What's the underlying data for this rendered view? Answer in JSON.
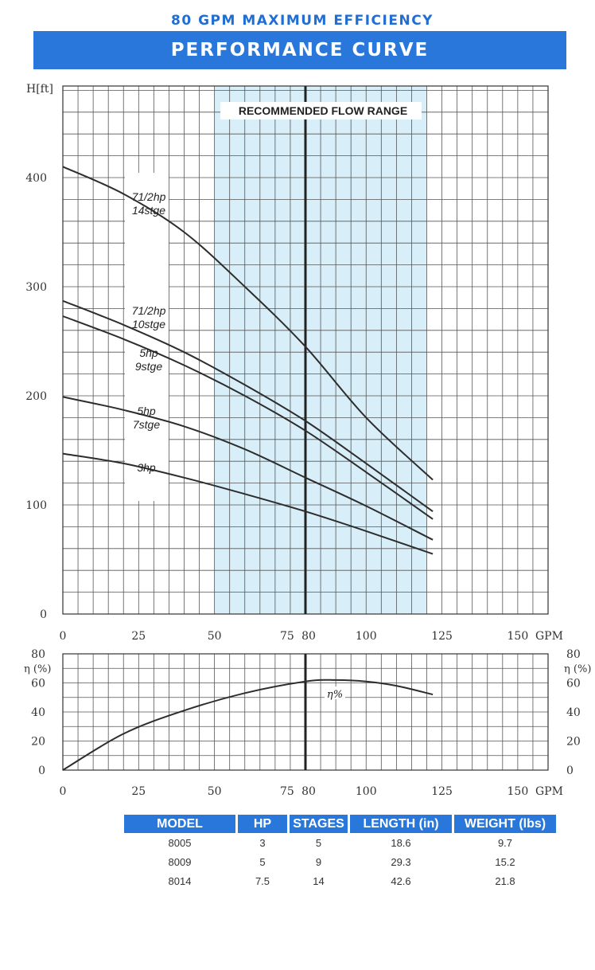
{
  "header": {
    "subtitle": "80 GPM MAXIMUM EFFICIENCY",
    "title": "PERFORMANCE CURVE"
  },
  "colors": {
    "banner": "#2a77db",
    "flow_range_fill": "#d8eef8",
    "curve": "#2d2d2d",
    "grid": "#555555"
  },
  "chart_data": [
    {
      "type": "line",
      "title": "PERFORMANCE CURVE",
      "ylabel": "H[ft]",
      "xunit": "GPM",
      "xlim": [
        0,
        160
      ],
      "ylim": [
        0,
        485
      ],
      "x_ticks": [
        0,
        25,
        50,
        75,
        80,
        100,
        125,
        150
      ],
      "y_ticks": [
        0,
        100,
        200,
        300,
        400
      ],
      "grid": true,
      "annotation": "RECOMMENDED FLOW RANGE",
      "recommended_flow_range": [
        50,
        120
      ],
      "highlight_x": 80,
      "series": [
        {
          "name": "71/2hp 14stge",
          "x": [
            0,
            20,
            40,
            60,
            80,
            100,
            122
          ],
          "y": [
            410,
            385,
            350,
            300,
            245,
            180,
            123
          ]
        },
        {
          "name": "71/2hp 10stge",
          "x": [
            0,
            20,
            40,
            60,
            80,
            100,
            122
          ],
          "y": [
            287,
            265,
            240,
            210,
            177,
            138,
            94
          ]
        },
        {
          "name": "5hp 9stge",
          "x": [
            0,
            20,
            40,
            60,
            80,
            100,
            122
          ],
          "y": [
            273,
            252,
            228,
            200,
            168,
            130,
            87
          ]
        },
        {
          "name": "5hp 7stge",
          "x": [
            0,
            20,
            40,
            60,
            80,
            100,
            122
          ],
          "y": [
            199,
            187,
            172,
            151,
            125,
            99,
            68
          ]
        },
        {
          "name": "3hp",
          "x": [
            0,
            20,
            40,
            60,
            80,
            100,
            122
          ],
          "y": [
            147,
            138,
            125,
            110,
            94,
            76,
            55
          ]
        }
      ]
    },
    {
      "type": "line",
      "ylabel": "η (%)",
      "xunit": "GPM",
      "xlim": [
        0,
        160
      ],
      "ylim": [
        0,
        80
      ],
      "x_ticks": [
        0,
        25,
        50,
        75,
        80,
        100,
        125,
        150
      ],
      "y_ticks": [
        0,
        20,
        40,
        60,
        80
      ],
      "grid": true,
      "highlight_x": 80,
      "series": [
        {
          "name": "η%",
          "x": [
            0,
            20,
            40,
            60,
            80,
            90,
            100,
            110,
            122
          ],
          "y": [
            0,
            25,
            41,
            53,
            61,
            62,
            61,
            58,
            52
          ]
        }
      ]
    }
  ],
  "spec_table": {
    "headers": [
      "MODEL",
      "HP",
      "STAGES",
      "LENGTH (in)",
      "WEIGHT (lbs)"
    ],
    "rows": [
      [
        "8005",
        "3",
        "5",
        "18.6",
        "9.7"
      ],
      [
        "8009",
        "5",
        "9",
        "29.3",
        "15.2"
      ],
      [
        "8014",
        "7.5",
        "14",
        "42.6",
        "21.8"
      ]
    ]
  }
}
